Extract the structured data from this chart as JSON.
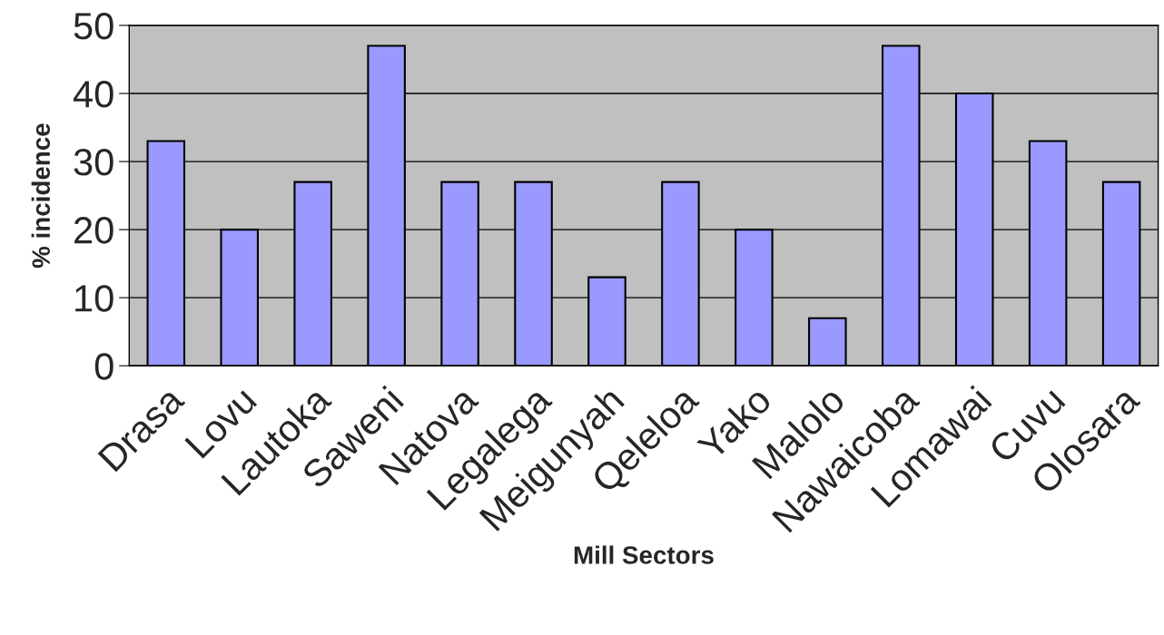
{
  "chart_data": {
    "type": "bar",
    "xlabel": "Mill Sectors",
    "ylabel": "% incidence",
    "categories": [
      "Drasa",
      "Lovu",
      "Lautoka",
      "Saweni",
      "Natova",
      "Legalega",
      "Meigunyah",
      "Qeleloa",
      "Yako",
      "Malolo",
      "Nawaicoba",
      "Lomawai",
      "Cuvu",
      "Olosara"
    ],
    "values": [
      33,
      20,
      27,
      47,
      27,
      27,
      13,
      27,
      20,
      7,
      47,
      40,
      33,
      27
    ],
    "color": "#9999ff",
    "ylim": [
      0,
      50
    ],
    "yticks": [
      0,
      10,
      20,
      30,
      40,
      50
    ],
    "grid": "y"
  }
}
